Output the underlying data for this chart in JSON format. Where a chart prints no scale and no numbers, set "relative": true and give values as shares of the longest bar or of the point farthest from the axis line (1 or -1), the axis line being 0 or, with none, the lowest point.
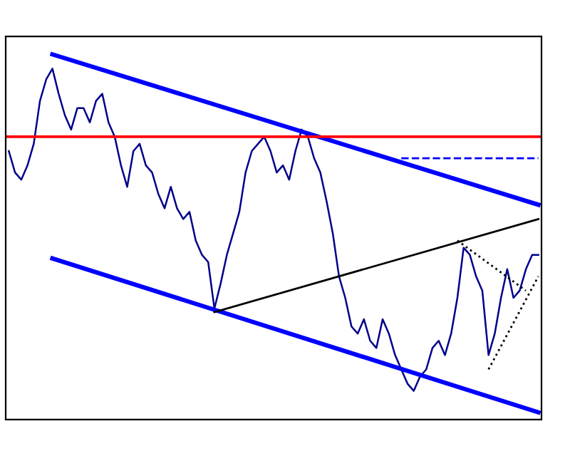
{
  "chart_data": {
    "type": "line",
    "relative": true,
    "categories": [
      null,
      null,
      null,
      null,
      null,
      null,
      null,
      null,
      null,
      null,
      null,
      null,
      null,
      null,
      null,
      null,
      null,
      null,
      null,
      null,
      null,
      null,
      null,
      null,
      null,
      null,
      null,
      null,
      null,
      null,
      null,
      null,
      null,
      null,
      null,
      null,
      null,
      null,
      null,
      null,
      null,
      null,
      null,
      null,
      null,
      null,
      null,
      null,
      null,
      null,
      null,
      null,
      null,
      null,
      null,
      null,
      null,
      null,
      null,
      null,
      null,
      null,
      null,
      null,
      null,
      null,
      null,
      null,
      null,
      null,
      null,
      null,
      null,
      null,
      null,
      null,
      null,
      null,
      null,
      null,
      null,
      null,
      null,
      null,
      null,
      null
    ],
    "series": [
      {
        "color": "#00008b",
        "values": [
          0.73,
          0.67,
          0.65,
          0.69,
          0.75,
          0.87,
          0.93,
          0.96,
          0.89,
          0.83,
          0.79,
          0.85,
          0.85,
          0.81,
          0.87,
          0.89,
          0.81,
          0.77,
          0.69,
          0.63,
          0.73,
          0.75,
          0.69,
          0.67,
          0.61,
          0.57,
          0.63,
          0.57,
          0.54,
          0.56,
          0.48,
          0.44,
          0.42,
          0.29,
          0.36,
          0.44,
          0.5,
          0.56,
          0.67,
          0.73,
          0.75,
          0.77,
          0.73,
          0.67,
          0.69,
          0.65,
          0.73,
          0.79,
          0.77,
          0.71,
          0.67,
          0.59,
          0.5,
          0.38,
          0.32,
          0.24,
          0.22,
          0.26,
          0.2,
          0.18,
          0.26,
          0.22,
          0.16,
          0.12,
          0.08,
          0.06,
          0.1,
          0.12,
          0.18,
          0.2,
          0.16,
          0.22,
          0.32,
          0.46,
          0.44,
          0.38,
          0.34,
          0.16,
          0.22,
          0.32,
          0.4,
          0.32,
          0.34,
          0.4,
          0.44,
          0.44
        ]
      },
      {
        "color": "#0000ff",
        "line_style": "solid",
        "values": [
          null,
          null,
          null,
          null,
          null,
          null,
          null,
          1.0,
          null,
          null,
          null,
          null,
          null,
          null,
          null,
          null,
          null,
          null,
          null,
          null,
          null,
          null,
          null,
          null,
          null,
          null,
          null,
          null,
          null,
          null,
          null,
          null,
          null,
          null,
          null,
          null,
          null,
          null,
          null,
          null,
          null,
          null,
          null,
          null,
          null,
          null,
          null,
          null,
          null,
          null,
          null,
          null,
          null,
          null,
          null,
          null,
          null,
          null,
          null,
          null,
          null,
          null,
          null,
          null,
          null,
          null,
          null,
          null,
          null,
          null,
          null,
          null,
          null,
          null,
          null,
          null,
          null,
          null,
          null,
          null,
          null,
          null,
          null,
          null,
          null,
          0.58
        ]
      },
      {
        "color": "#0000ff",
        "line_style": "solid",
        "values": [
          null,
          null,
          null,
          null,
          null,
          null,
          null,
          0.43,
          null,
          null,
          null,
          null,
          null,
          null,
          null,
          null,
          null,
          null,
          null,
          null,
          null,
          null,
          null,
          null,
          null,
          null,
          null,
          null,
          null,
          null,
          null,
          null,
          null,
          null,
          null,
          null,
          null,
          null,
          null,
          null,
          null,
          null,
          null,
          null,
          null,
          null,
          null,
          null,
          null,
          null,
          null,
          null,
          null,
          null,
          null,
          null,
          null,
          null,
          null,
          null,
          null,
          null,
          null,
          null,
          null,
          null,
          null,
          null,
          null,
          null,
          null,
          null,
          null,
          null,
          null,
          null,
          null,
          null,
          null,
          null,
          null,
          null,
          null,
          null,
          null,
          0.0
        ]
      },
      {
        "color": "#000000",
        "line_style": "solid",
        "values": [
          null,
          null,
          null,
          null,
          null,
          null,
          null,
          null,
          null,
          null,
          null,
          null,
          null,
          null,
          null,
          null,
          null,
          null,
          null,
          null,
          null,
          null,
          null,
          null,
          null,
          null,
          null,
          null,
          null,
          null,
          null,
          null,
          null,
          0.28,
          null,
          null,
          null,
          null,
          null,
          null,
          null,
          null,
          null,
          null,
          null,
          null,
          null,
          null,
          null,
          null,
          null,
          null,
          null,
          null,
          null,
          null,
          null,
          null,
          null,
          null,
          null,
          null,
          null,
          null,
          null,
          null,
          null,
          null,
          null,
          null,
          null,
          null,
          null,
          null,
          null,
          null,
          null,
          null,
          null,
          null,
          null,
          null,
          null,
          null,
          null,
          0.54
        ]
      },
      {
        "color": "#000000",
        "line_style": "dotted",
        "values": [
          null,
          null,
          null,
          null,
          null,
          null,
          null,
          null,
          null,
          null,
          null,
          null,
          null,
          null,
          null,
          null,
          null,
          null,
          null,
          null,
          null,
          null,
          null,
          null,
          null,
          null,
          null,
          null,
          null,
          null,
          null,
          null,
          null,
          null,
          null,
          null,
          null,
          null,
          null,
          null,
          null,
          null,
          null,
          null,
          null,
          null,
          null,
          null,
          null,
          null,
          null,
          null,
          null,
          null,
          null,
          null,
          null,
          null,
          null,
          null,
          null,
          null,
          null,
          null,
          null,
          null,
          null,
          null,
          null,
          null,
          null,
          null,
          null,
          null,
          null,
          null,
          null,
          0.12,
          null,
          null,
          null,
          null,
          null,
          null,
          null,
          0.38
        ]
      },
      {
        "color": "#000000",
        "line_style": "dotted",
        "values": [
          null,
          null,
          null,
          null,
          null,
          null,
          null,
          null,
          null,
          null,
          null,
          null,
          null,
          null,
          null,
          null,
          null,
          null,
          null,
          null,
          null,
          null,
          null,
          null,
          null,
          null,
          null,
          null,
          null,
          null,
          null,
          null,
          null,
          null,
          null,
          null,
          null,
          null,
          null,
          null,
          null,
          null,
          null,
          null,
          null,
          null,
          null,
          null,
          null,
          null,
          null,
          null,
          null,
          null,
          null,
          null,
          null,
          null,
          null,
          null,
          null,
          null,
          null,
          null,
          null,
          null,
          null,
          null,
          null,
          null,
          null,
          null,
          0.48,
          null,
          null,
          null,
          null,
          null,
          null,
          null,
          null,
          null,
          null,
          0.34,
          null,
          null
        ]
      },
      {
        "color": "#0000ff",
        "line_style": "dashed",
        "values": [
          null,
          null,
          null,
          null,
          null,
          null,
          null,
          null,
          null,
          null,
          null,
          null,
          null,
          null,
          null,
          null,
          null,
          null,
          null,
          null,
          null,
          null,
          null,
          null,
          null,
          null,
          null,
          null,
          null,
          null,
          null,
          null,
          null,
          null,
          null,
          null,
          null,
          null,
          null,
          null,
          null,
          null,
          null,
          null,
          null,
          null,
          null,
          null,
          null,
          null,
          null,
          null,
          null,
          null,
          null,
          null,
          null,
          null,
          null,
          null,
          null,
          null,
          null,
          0.71,
          null,
          null,
          null,
          null,
          null,
          null,
          null,
          null,
          null,
          null,
          null,
          null,
          null,
          null,
          null,
          null,
          null,
          null,
          null,
          null,
          null,
          0.71
        ]
      }
    ],
    "ref_lines": [
      {
        "axis": "y",
        "value": 0.77,
        "color": "#ff0000"
      }
    ]
  }
}
